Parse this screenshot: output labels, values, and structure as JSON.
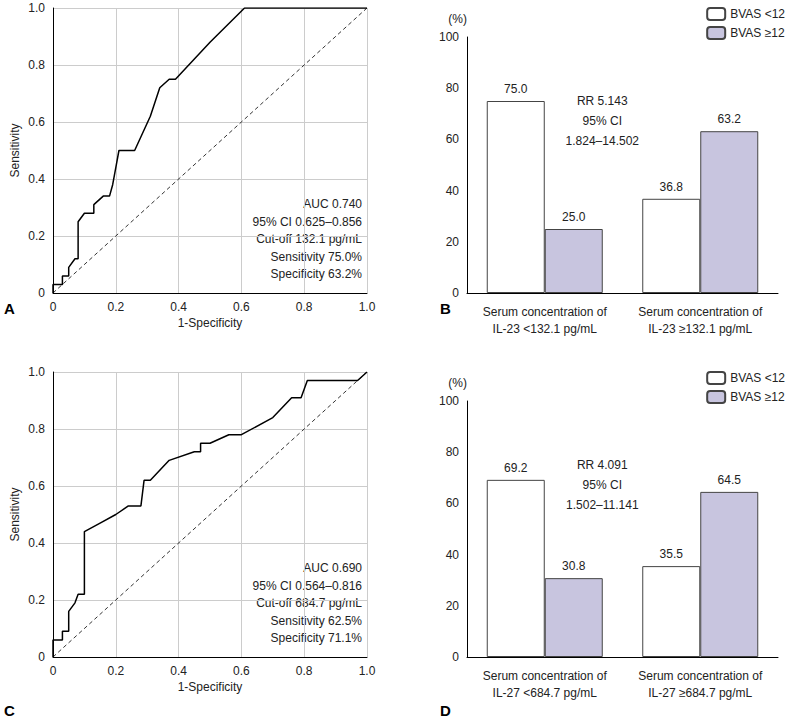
{
  "chart_data": [
    {
      "type": "line",
      "title": "A",
      "xlabel": "1-Specificity",
      "ylabel": "Sensitivity",
      "xlim": [
        0,
        1
      ],
      "ylim": [
        0,
        1
      ],
      "xticks": [
        0,
        0.2,
        0.4,
        0.6,
        0.8,
        {
          "value": 1,
          "label": "1.0"
        }
      ],
      "yticks": [
        0,
        0.2,
        0.4,
        0.6,
        0.8,
        {
          "value": 1,
          "label": "1.0"
        }
      ],
      "grid": true,
      "annotations": [
        "AUC 0.740",
        "95% CI 0.625–0.856",
        "Cut-off 132.1 pg/mL",
        "Sensitivity 75.0%",
        "Specificity 63.2%"
      ],
      "series": [
        {
          "color": "#000000",
          "line_style": "solid",
          "marker": "none",
          "x": [
            0,
            0,
            0.03,
            0.03,
            0.05,
            0.05,
            0.07,
            0.08,
            0.08,
            0.1,
            0.13,
            0.13,
            0.16,
            0.18,
            0.19,
            0.2,
            0.21,
            0.26,
            0.31,
            0.34,
            0.37,
            0.39,
            0.5,
            0.61,
            1
          ],
          "values": [
            0,
            0.03,
            0.03,
            0.06,
            0.06,
            0.09,
            0.12,
            0.12,
            0.25,
            0.28,
            0.28,
            0.31,
            0.34,
            0.34,
            0.38,
            0.44,
            0.5,
            0.5,
            0.62,
            0.72,
            0.75,
            0.75,
            0.88,
            1,
            1
          ]
        },
        {
          "color": "#000000",
          "line_style": "dashed",
          "marker": "none",
          "x": [
            0,
            1
          ],
          "values": [
            0,
            1
          ]
        }
      ]
    },
    {
      "type": "bar",
      "title": "B",
      "ylabel": "(%)",
      "categories": [
        "Serum concentration of\nIL-23 <132.1 pg/mL",
        "Serum concentration of\nIL-23 ≥132.1 pg/mL"
      ],
      "ylim": [
        0,
        100
      ],
      "yticks": [
        0,
        20,
        40,
        60,
        80,
        100
      ],
      "grid": false,
      "legend": "top-right",
      "data_labels": true,
      "annotations": [
        "RR 5.143",
        "95% CI",
        "1.824–14.502"
      ],
      "series": [
        {
          "name": "BVAS <12",
          "color": "#ffffff",
          "values": [
            75.0,
            36.8
          ],
          "value_labels": [
            "75.0",
            "36.8"
          ]
        },
        {
          "name": "BVAS ≥12",
          "color": "#c8c5df",
          "values": [
            25.0,
            63.2
          ],
          "value_labels": [
            "25.0",
            "63.2"
          ]
        }
      ]
    },
    {
      "type": "line",
      "title": "C",
      "xlabel": "1-Specificity",
      "ylabel": "Sensitivity",
      "xlim": [
        0,
        1
      ],
      "ylim": [
        0,
        1
      ],
      "xticks": [
        0,
        0.2,
        0.4,
        0.6,
        0.8,
        {
          "value": 1,
          "label": "1.0"
        }
      ],
      "yticks": [
        0,
        0.2,
        0.4,
        0.6,
        0.8,
        {
          "value": 1,
          "label": "1.0"
        }
      ],
      "grid": true,
      "annotations": [
        "AUC 0.690",
        "95% CI 0.564–0.816",
        "Cut-off 684.7 pg/mL",
        "Sensitivity 62.5%",
        "Specificity 71.1%"
      ],
      "series": [
        {
          "color": "#000000",
          "line_style": "solid",
          "marker": "none",
          "x": [
            0,
            0,
            0.03,
            0.03,
            0.05,
            0.05,
            0.07,
            0.08,
            0.1,
            0.1,
            0.15,
            0.2,
            0.24,
            0.28,
            0.29,
            0.31,
            0.37,
            0.45,
            0.47,
            0.47,
            0.5,
            0.56,
            0.6,
            0.7,
            0.76,
            0.79,
            0.81,
            0.97,
            1
          ],
          "values": [
            0,
            0.06,
            0.06,
            0.09,
            0.09,
            0.16,
            0.19,
            0.22,
            0.22,
            0.44,
            0.47,
            0.5,
            0.53,
            0.53,
            0.62,
            0.62,
            0.69,
            0.72,
            0.72,
            0.75,
            0.75,
            0.78,
            0.78,
            0.84,
            0.91,
            0.91,
            0.97,
            0.97,
            1
          ]
        },
        {
          "color": "#000000",
          "line_style": "dashed",
          "marker": "none",
          "x": [
            0,
            1
          ],
          "values": [
            0,
            1
          ]
        }
      ]
    },
    {
      "type": "bar",
      "title": "D",
      "ylabel": "(%)",
      "categories": [
        "Serum concentration of\nIL-27 <684.7 pg/mL",
        "Serum concentration of\nIL-27 ≥684.7 pg/mL"
      ],
      "ylim": [
        0,
        100
      ],
      "yticks": [
        0,
        20,
        40,
        60,
        80,
        100
      ],
      "grid": false,
      "legend": "top-right",
      "data_labels": true,
      "annotations": [
        "RR 4.091",
        "95% CI",
        "1.502–11.141"
      ],
      "series": [
        {
          "name": "BVAS <12",
          "color": "#ffffff",
          "values": [
            69.2,
            35.5
          ],
          "value_labels": [
            "69.2",
            "35.5"
          ]
        },
        {
          "name": "BVAS ≥12",
          "color": "#c8c5df",
          "values": [
            30.8,
            64.5
          ],
          "value_labels": [
            "30.8",
            "64.5"
          ]
        }
      ]
    }
  ]
}
